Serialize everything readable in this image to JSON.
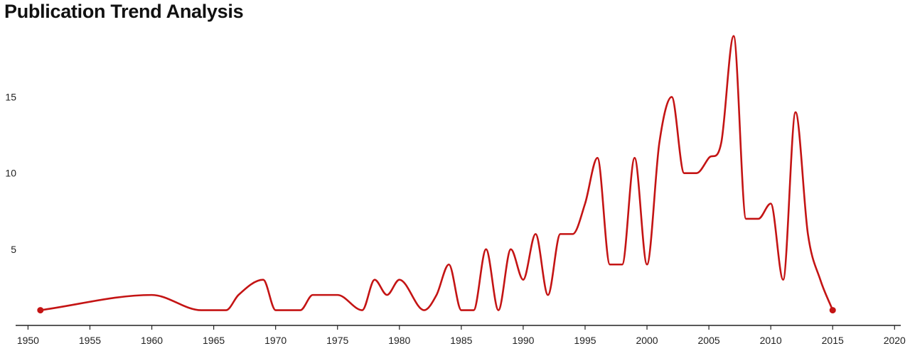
{
  "chart_data": {
    "type": "line",
    "title": "Publication Trend Analysis",
    "xlabel": "",
    "ylabel": "",
    "xlim": [
      1949,
      2020.5
    ],
    "ylim": [
      0,
      19.5
    ],
    "x_ticks": [
      1950,
      1955,
      1960,
      1965,
      1970,
      1975,
      1980,
      1985,
      1990,
      1995,
      2000,
      2005,
      2010,
      2015,
      2020
    ],
    "y_ticks": [
      5,
      10,
      15
    ],
    "grid": false,
    "color": "#c41414",
    "series": [
      {
        "x": [
          1951,
          1960,
          1964,
          1966,
          1967,
          1969,
          1970,
          1972,
          1973,
          1975,
          1977,
          1978,
          1979,
          1980,
          1982,
          1983,
          1984,
          1985,
          1986,
          1987,
          1988,
          1989,
          1990,
          1991,
          1992,
          1993,
          1994,
          1995,
          1996,
          1997,
          1998,
          1999,
          2000,
          2001,
          2002,
          2003,
          2004,
          2005,
          2006,
          2007,
          2008,
          2009,
          2010,
          2011,
          2012,
          2013,
          2014,
          2015
        ],
        "values": [
          1,
          2,
          1,
          1,
          2,
          3,
          1,
          1,
          2,
          2,
          1,
          3,
          2,
          3,
          1,
          2,
          4,
          1,
          1,
          5,
          1,
          5,
          3,
          6,
          2,
          6,
          6,
          8,
          11,
          4,
          4,
          11,
          4,
          12,
          15,
          10,
          10,
          11,
          12,
          19,
          7,
          7,
          8,
          3,
          14,
          6,
          3,
          1
        ]
      }
    ]
  }
}
